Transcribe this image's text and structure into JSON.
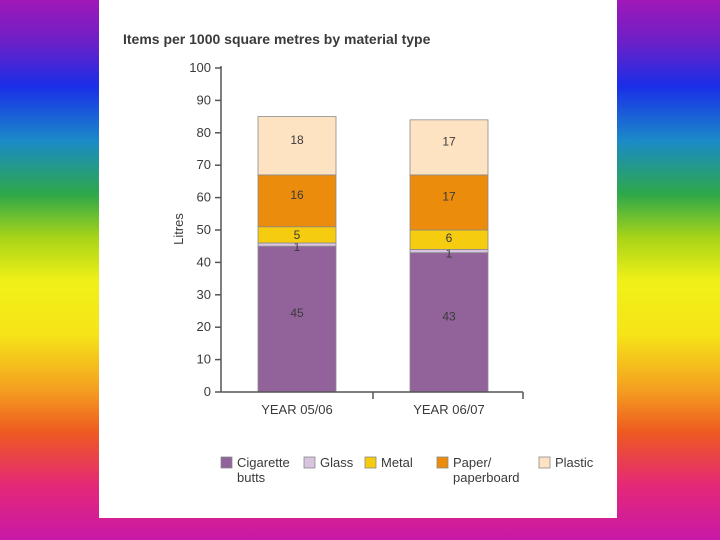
{
  "chart_data": {
    "type": "bar",
    "stacked": true,
    "title": "Items per 1000 square metres by material type",
    "xlabel": "",
    "ylabel": "Litres",
    "ylim": [
      0,
      100
    ],
    "yticks": [
      0,
      10,
      20,
      30,
      40,
      50,
      60,
      70,
      80,
      90,
      100
    ],
    "categories": [
      "YEAR 05/06",
      "YEAR 06/07"
    ],
    "series": [
      {
        "name": "Cigarette butts",
        "color": "#92629a",
        "values": [
          45,
          43
        ]
      },
      {
        "name": "Glass",
        "color": "#d9c4e0",
        "values": [
          1,
          1
        ]
      },
      {
        "name": "Metal",
        "color": "#f6cc10",
        "values": [
          5,
          6
        ]
      },
      {
        "name": "Paper/ paperboard",
        "color": "#ec8c0c",
        "values": [
          16,
          17
        ]
      },
      {
        "name": "Plastic",
        "color": "#fde3c2",
        "values": [
          18,
          17
        ]
      }
    ],
    "legend": {
      "position": "bottom",
      "items": [
        {
          "label_lines": [
            "Cigarette",
            "butts"
          ]
        },
        {
          "label_lines": [
            "Glass"
          ]
        },
        {
          "label_lines": [
            "Metal"
          ]
        },
        {
          "label_lines": [
            "Paper/",
            "paperboard"
          ]
        },
        {
          "label_lines": [
            "Plastic"
          ]
        }
      ]
    }
  }
}
